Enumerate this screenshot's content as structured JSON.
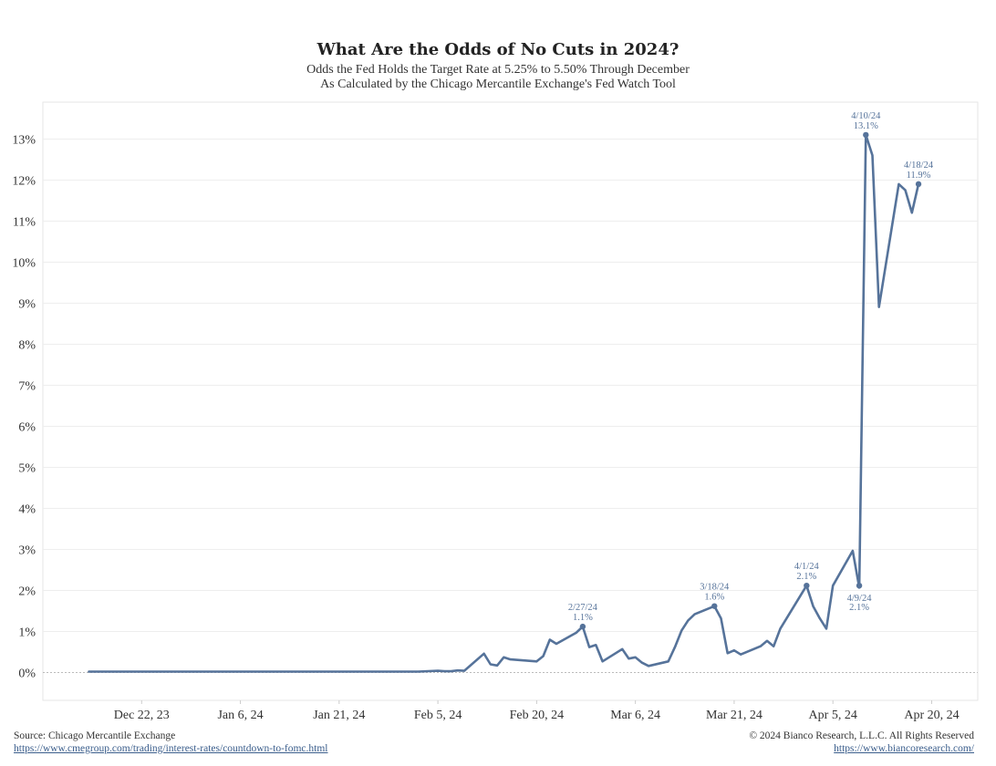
{
  "chart_data": {
    "type": "line",
    "title": "What Are the Odds of No Cuts in 2024?",
    "subtitle_lines": [
      "Odds the Fed Holds the Target Rate at 5.25% to 5.50% Through December",
      "As Calculated by the Chicago Mercantile Exchange's Fed Watch Tool"
    ],
    "xlabel": "",
    "ylabel": "",
    "x_range": [
      "2023-12-07",
      "2024-04-27"
    ],
    "y_range": [
      -0.7,
      13.9
    ],
    "x_tick_labels": [
      {
        "date": "2023-12-22",
        "label": "Dec 22, 23"
      },
      {
        "date": "2024-01-06",
        "label": "Jan 6, 24"
      },
      {
        "date": "2024-01-21",
        "label": "Jan 21, 24"
      },
      {
        "date": "2024-02-05",
        "label": "Feb 5, 24"
      },
      {
        "date": "2024-02-20",
        "label": "Feb 20, 24"
      },
      {
        "date": "2024-03-06",
        "label": "Mar 6, 24"
      },
      {
        "date": "2024-03-21",
        "label": "Mar 21, 24"
      },
      {
        "date": "2024-04-05",
        "label": "Apr 5, 24"
      },
      {
        "date": "2024-04-20",
        "label": "Apr 20, 24"
      }
    ],
    "y_ticks": [
      0,
      1,
      2,
      3,
      4,
      5,
      6,
      7,
      8,
      9,
      10,
      11,
      12,
      13
    ],
    "y_tick_labels": [
      "0%",
      "1%",
      "2%",
      "3%",
      "4%",
      "5%",
      "6%",
      "7%",
      "8%",
      "9%",
      "10%",
      "11%",
      "12%",
      "13%"
    ],
    "grid": "horizontal",
    "line_color": "#56739a",
    "annotation_color": "#56739a",
    "series": [
      {
        "x": [
          "2023-12-14",
          "2023-12-15",
          "2023-12-18",
          "2023-12-19",
          "2023-12-20",
          "2023-12-21",
          "2023-12-22",
          "2023-12-26",
          "2023-12-27",
          "2023-12-28",
          "2023-12-29",
          "2024-01-02",
          "2024-01-03",
          "2024-01-04",
          "2024-01-05",
          "2024-01-08",
          "2024-01-09",
          "2024-01-10",
          "2024-01-11",
          "2024-01-12",
          "2024-01-16",
          "2024-01-17",
          "2024-01-18",
          "2024-01-19",
          "2024-01-22",
          "2024-01-23",
          "2024-01-24",
          "2024-01-25",
          "2024-01-26",
          "2024-01-29",
          "2024-01-30",
          "2024-01-31",
          "2024-02-01",
          "2024-02-02",
          "2024-02-05",
          "2024-02-06",
          "2024-02-07",
          "2024-02-08",
          "2024-02-09",
          "2024-02-12",
          "2024-02-13",
          "2024-02-14",
          "2024-02-15",
          "2024-02-16",
          "2024-02-20",
          "2024-02-21",
          "2024-02-22",
          "2024-02-23",
          "2024-02-26",
          "2024-02-27",
          "2024-02-28",
          "2024-02-29",
          "2024-03-01",
          "2024-03-04",
          "2024-03-05",
          "2024-03-06",
          "2024-03-07",
          "2024-03-08",
          "2024-03-11",
          "2024-03-12",
          "2024-03-13",
          "2024-03-14",
          "2024-03-15",
          "2024-03-18",
          "2024-03-19",
          "2024-03-20",
          "2024-03-21",
          "2024-03-22",
          "2024-03-25",
          "2024-03-26",
          "2024-03-27",
          "2024-03-28",
          "2024-04-01",
          "2024-04-02",
          "2024-04-03",
          "2024-04-04",
          "2024-04-05",
          "2024-04-08",
          "2024-04-09",
          "2024-04-10",
          "2024-04-11",
          "2024-04-12",
          "2024-04-15",
          "2024-04-16",
          "2024-04-17",
          "2024-04-18"
        ],
        "y": [
          0,
          0,
          0,
          0,
          0,
          0,
          0,
          0,
          0,
          0,
          0,
          0,
          0,
          0,
          0,
          0,
          0,
          0,
          0,
          0,
          0,
          0,
          0,
          0,
          0,
          0,
          0,
          0,
          0,
          0,
          0,
          0,
          0,
          0,
          0.02,
          0.01,
          0.01,
          0.03,
          0.02,
          0.44,
          0.18,
          0.15,
          0.35,
          0.3,
          0.25,
          0.38,
          0.78,
          0.68,
          0.95,
          1.1,
          0.6,
          0.65,
          0.25,
          0.55,
          0.32,
          0.35,
          0.22,
          0.14,
          0.25,
          0.6,
          1.0,
          1.25,
          1.4,
          1.6,
          1.3,
          0.45,
          0.52,
          0.42,
          0.62,
          0.75,
          0.62,
          1.05,
          2.1,
          1.6,
          1.3,
          1.05,
          2.1,
          2.95,
          2.05,
          13.1,
          12.6,
          8.9,
          11.9,
          11.75,
          11.2,
          11.9
        ]
      }
    ],
    "annotations": [
      {
        "date": "2024-02-27",
        "value": 1.1,
        "date_label": "2/27/24",
        "value_label": "1.1%",
        "position": "above"
      },
      {
        "date": "2024-03-18",
        "value": 1.6,
        "date_label": "3/18/24",
        "value_label": "1.6%",
        "position": "above"
      },
      {
        "date": "2024-04-01",
        "value": 2.1,
        "date_label": "4/1/24",
        "value_label": "2.1%",
        "position": "above"
      },
      {
        "date": "2024-04-09",
        "value": 2.1,
        "date_label": "4/9/24",
        "value_label": "2.1%",
        "position": "below"
      },
      {
        "date": "2024-04-10",
        "value": 13.1,
        "date_label": "4/10/24",
        "value_label": "13.1%",
        "position": "above"
      },
      {
        "date": "2024-04-18",
        "value": 11.9,
        "date_label": "4/18/24",
        "value_label": "11.9%",
        "position": "above"
      }
    ]
  },
  "footer": {
    "source": "Source: Chicago Mercantile Exchange",
    "source_url": "https://www.cmegroup.com/trading/interest-rates/countdown-to-fomc.html",
    "copyright": "© 2024 Bianco Research, L.L.C. All Rights Reserved",
    "copyright_url": "https://www.biancoresearch.com/"
  }
}
